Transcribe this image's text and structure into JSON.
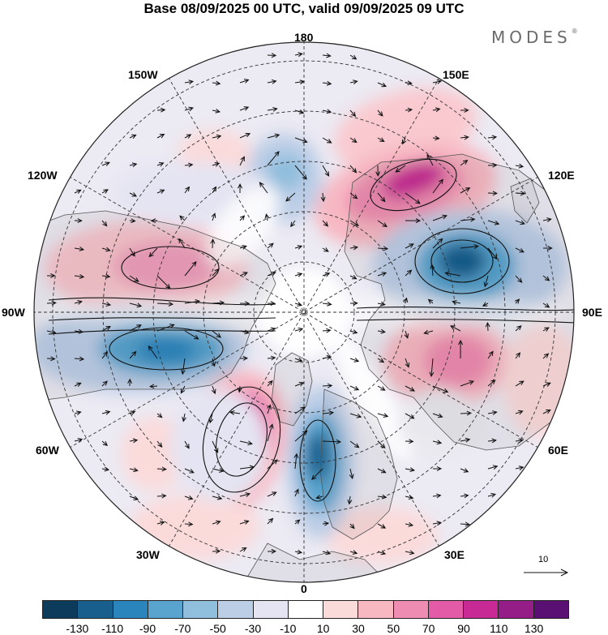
{
  "title": "Base 08/09/2025 00 UTC, valid 09/09/2025 09 UTC",
  "brand": {
    "name": "MODES",
    "mark": "®"
  },
  "longitude_labels": {
    "n180": "180",
    "e150": "150E",
    "e120": "120E",
    "e90": "90E",
    "e60": "60E",
    "e30": "30E",
    "s0": "0",
    "w30": "30W",
    "w60": "60W",
    "w90": "90W",
    "w120": "120W",
    "w150": "150W"
  },
  "vector_scale_label": "10",
  "colorbar": {
    "colors": [
      "#0d3b5c",
      "#195f8e",
      "#2a85bd",
      "#58a4cf",
      "#90bedd",
      "#bccde6",
      "#e4e4f2",
      "#ffffff",
      "#fbdada",
      "#f7b8c2",
      "#ef8cb1",
      "#e35aa6",
      "#c72a94",
      "#941d88",
      "#5a1073"
    ],
    "tick_labels": [
      "-130",
      "-110",
      "-90",
      "-70",
      "-50",
      "-30",
      "-10",
      "10",
      "30",
      "50",
      "70",
      "90",
      "110",
      "130"
    ]
  },
  "colors": {
    "land": "#ededed",
    "coast": "#666666",
    "grid": "#333333"
  }
}
